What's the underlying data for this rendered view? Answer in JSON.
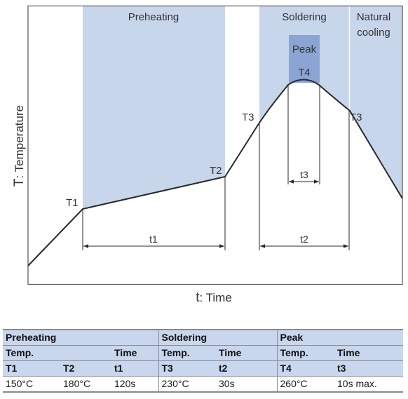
{
  "diagram": {
    "regions": {
      "preheating": "Preheating",
      "soldering": "Soldering",
      "natural_cooling_line1": "Natural",
      "natural_cooling_line2": "cooling",
      "peak": "Peak"
    },
    "points": {
      "t1": "T1",
      "t2": "T2",
      "t3_left": "T3",
      "t3_right": "T3",
      "t4": "T4"
    },
    "dimensions": {
      "t1": "t1",
      "t2": "t2",
      "t3": "t3"
    },
    "y_axis": {
      "var": "T",
      "label": ": Temperature"
    },
    "x_axis": {
      "var": "t",
      "label": ": Time"
    },
    "colors": {
      "region_fill": "#c8d6ec",
      "peak_fill": "#8aa4d4",
      "curve": "#2a2a2a",
      "frame": "#555555"
    }
  },
  "table": {
    "groups": [
      "Preheating",
      "Soldering",
      "Peak"
    ],
    "subheaders": [
      "Temp.",
      "Time",
      "Temp.",
      "Time",
      "Temp.",
      "Time"
    ],
    "ids": [
      "T1",
      "T2",
      "t1",
      "T3",
      "t2",
      "T4",
      "t3"
    ],
    "values": [
      "150°C",
      "180°C",
      "120s",
      "230°C",
      "30s",
      "260°C",
      "10s max."
    ]
  }
}
